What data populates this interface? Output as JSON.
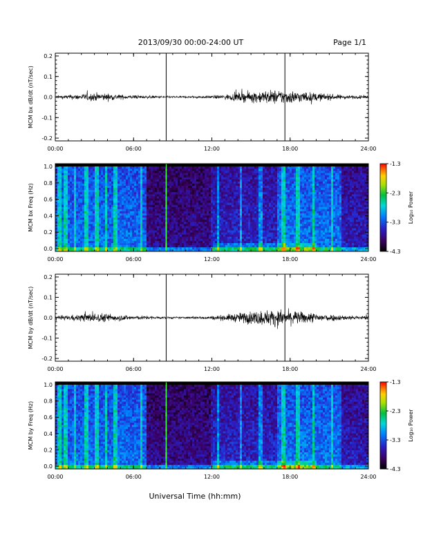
{
  "header": {
    "title": "2013/09/30  00:00-24:00 UT",
    "page": "Page 1/1"
  },
  "xaxis_label": "Universal Time (hh:mm)",
  "colors": {
    "trace": "#000000",
    "marker_line": "#000000"
  },
  "chart_data": [
    {
      "type": "line",
      "ylabel": "MCM bx dB/dt (nT/sec)",
      "x_ticks": [
        "00:00",
        "06:00",
        "12:00",
        "18:00",
        "24:00"
      ],
      "y_ticks": [
        "0.2",
        "0.1",
        "0.0",
        "-0.1",
        "-0.2"
      ],
      "xlim_hours": [
        0,
        24
      ],
      "ylim": [
        -0.2,
        0.2
      ],
      "marker_lines_hours": [
        8.5,
        17.6
      ],
      "activity_envelope": {
        "hours": [
          0,
          1,
          2,
          3,
          4,
          5,
          6,
          7,
          8,
          9,
          10,
          11,
          12,
          13,
          14,
          15,
          16,
          17,
          18,
          19,
          20,
          21,
          22,
          23,
          24
        ],
        "amplitude": [
          0.012,
          0.018,
          0.025,
          0.035,
          0.03,
          0.02,
          0.015,
          0.012,
          0.01,
          0.008,
          0.008,
          0.01,
          0.012,
          0.02,
          0.035,
          0.045,
          0.055,
          0.06,
          0.055,
          0.045,
          0.035,
          0.025,
          0.018,
          0.014,
          0.012
        ]
      }
    },
    {
      "type": "heatmap",
      "ylabel": "MCM bx Freq (Hz)",
      "x_ticks": [
        "00:00",
        "06:00",
        "12:00",
        "18:00",
        "24:00"
      ],
      "y_ticks": [
        "1.0",
        "0.8",
        "0.6",
        "0.4",
        "0.2",
        "0.0"
      ],
      "xlim_hours": [
        0,
        24
      ],
      "ylim": [
        0,
        1
      ],
      "colorbar": {
        "label": "Log₁₀ Power",
        "ticks": [
          "-1.3",
          "-2.3",
          "-3.3",
          "-4.3"
        ],
        "range": [
          -4.3,
          -1.3
        ]
      },
      "bright_bands_hours": [
        0.3,
        0.8,
        1.5,
        2.4,
        3.2,
        3.9,
        4.6,
        6.6,
        8.5,
        12.5,
        14.2,
        15.7,
        17.5,
        18.6,
        19.8,
        21.2
      ]
    },
    {
      "type": "line",
      "ylabel": "MCM by dB/dt (nT/sec)",
      "x_ticks": [
        "00:00",
        "06:00",
        "12:00",
        "18:00",
        "24:00"
      ],
      "y_ticks": [
        "0.2",
        "0.1",
        "0.0",
        "-0.1",
        "-0.2"
      ],
      "xlim_hours": [
        0,
        24
      ],
      "ylim": [
        -0.2,
        0.2
      ],
      "marker_lines_hours": [
        8.5,
        17.6
      ],
      "activity_envelope": {
        "hours": [
          0,
          1,
          2,
          3,
          4,
          5,
          6,
          7,
          8,
          9,
          10,
          11,
          12,
          13,
          14,
          15,
          16,
          17,
          18,
          19,
          20,
          21,
          22,
          23,
          24
        ],
        "amplitude": [
          0.015,
          0.02,
          0.03,
          0.04,
          0.035,
          0.025,
          0.018,
          0.015,
          0.01,
          0.008,
          0.008,
          0.01,
          0.015,
          0.025,
          0.04,
          0.055,
          0.065,
          0.07,
          0.06,
          0.05,
          0.04,
          0.03,
          0.022,
          0.018,
          0.015
        ]
      }
    },
    {
      "type": "heatmap",
      "ylabel": "MCM by Freq (Hz)",
      "x_ticks": [
        "00:00",
        "06:00",
        "12:00",
        "18:00",
        "24:00"
      ],
      "y_ticks": [
        "1.0",
        "0.8",
        "0.6",
        "0.4",
        "0.2",
        "0.0"
      ],
      "xlim_hours": [
        0,
        24
      ],
      "ylim": [
        0,
        1
      ],
      "colorbar": {
        "label": "Log₁₀ Power",
        "ticks": [
          "-1.3",
          "-2.3",
          "-3.3",
          "-4.3"
        ],
        "range": [
          -4.3,
          -1.3
        ]
      },
      "bright_bands_hours": [
        0.3,
        0.8,
        1.5,
        2.4,
        3.2,
        3.9,
        4.6,
        6.6,
        8.5,
        12.5,
        14.2,
        15.7,
        17.5,
        18.6,
        19.8,
        21.2
      ]
    }
  ]
}
